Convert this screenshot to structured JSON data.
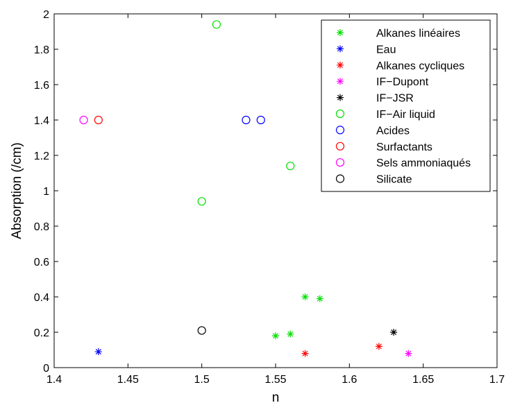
{
  "chart_data": {
    "type": "scatter",
    "xlabel": "n",
    "ylabel": "Absorption (/cm)",
    "xlim": [
      1.4,
      1.7
    ],
    "ylim": [
      0,
      2
    ],
    "xticks": [
      1.4,
      1.45,
      1.5,
      1.55,
      1.6,
      1.65,
      1.7
    ],
    "yticks": [
      0,
      0.2,
      0.4,
      0.6,
      0.8,
      1,
      1.2,
      1.4,
      1.6,
      1.8,
      2
    ],
    "xtick_labels": [
      "1.4",
      "1.45",
      "1.5",
      "1.55",
      "1.6",
      "1.65",
      "1.7"
    ],
    "ytick_labels": [
      "0",
      "0.2",
      "0.4",
      "0.6",
      "0.8",
      "1",
      "1.2",
      "1.4",
      "1.6",
      "1.8",
      "2"
    ],
    "grid": false,
    "legend_position": "top-right",
    "series": [
      {
        "name": "Alkanes linéaires",
        "marker": "star",
        "color": "#00e000",
        "points": [
          [
            1.55,
            0.18
          ],
          [
            1.56,
            0.19
          ],
          [
            1.57,
            0.4
          ],
          [
            1.58,
            0.39
          ]
        ]
      },
      {
        "name": "Eau",
        "marker": "star",
        "color": "#0000ff",
        "points": [
          [
            1.43,
            0.09
          ]
        ]
      },
      {
        "name": "Alkanes cycliques",
        "marker": "star",
        "color": "#ff0000",
        "points": [
          [
            1.57,
            0.08
          ],
          [
            1.62,
            0.12
          ]
        ]
      },
      {
        "name": "IF−Dupont",
        "marker": "star",
        "color": "#ff00ff",
        "points": [
          [
            1.64,
            0.08
          ]
        ]
      },
      {
        "name": "IF−JSR",
        "marker": "star",
        "color": "#000000",
        "points": [
          [
            1.63,
            0.2
          ]
        ]
      },
      {
        "name": "IF−Air liquid",
        "marker": "circle",
        "color": "#00e000",
        "points": [
          [
            1.51,
            1.94
          ],
          [
            1.5,
            0.94
          ],
          [
            1.56,
            1.14
          ]
        ]
      },
      {
        "name": "Acides",
        "marker": "circle",
        "color": "#0000ff",
        "points": [
          [
            1.53,
            1.4
          ],
          [
            1.54,
            1.4
          ]
        ]
      },
      {
        "name": "Surfactants",
        "marker": "circle",
        "color": "#ff0000",
        "points": [
          [
            1.43,
            1.4
          ]
        ]
      },
      {
        "name": "Sels ammoniaqués",
        "marker": "circle",
        "color": "#ff00ff",
        "points": [
          [
            1.42,
            1.4
          ]
        ]
      },
      {
        "name": "Silicate",
        "marker": "circle",
        "color": "#000000",
        "points": [
          [
            1.5,
            0.21
          ]
        ]
      }
    ]
  }
}
